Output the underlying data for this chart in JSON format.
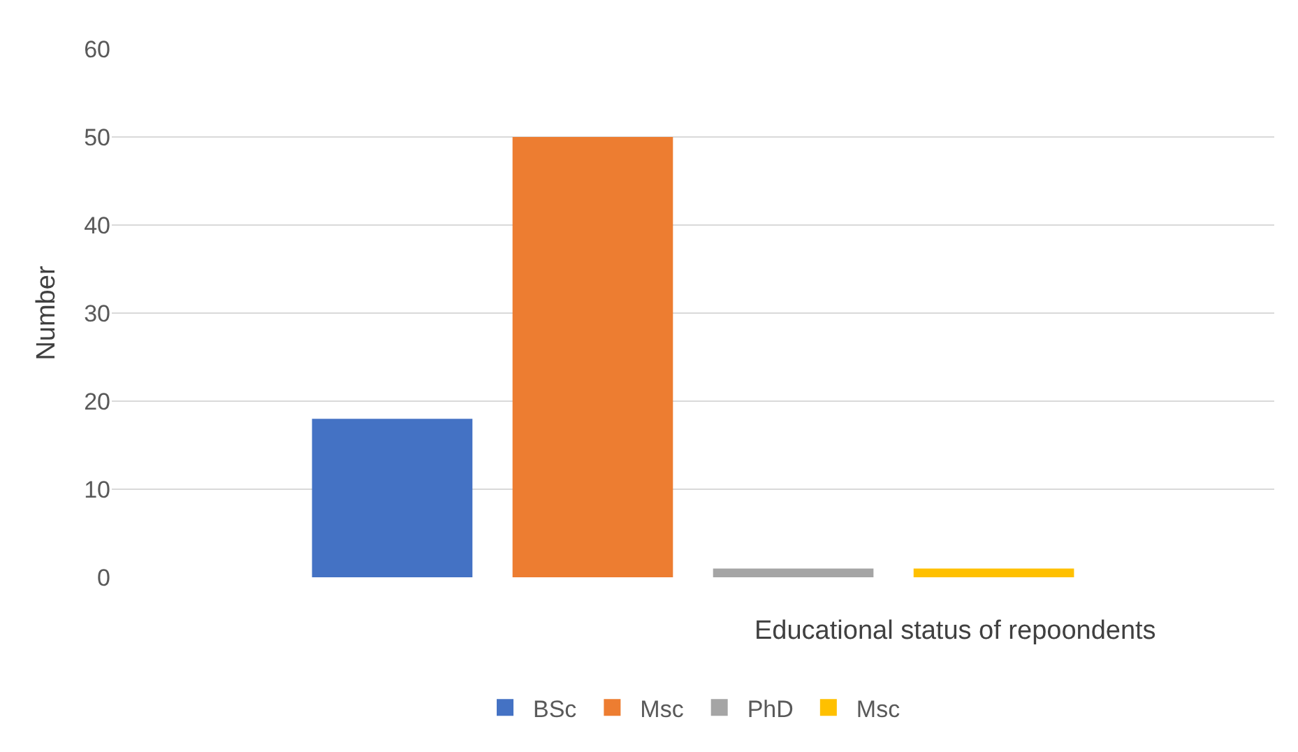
{
  "chart_data": {
    "type": "bar",
    "xlabel": "Educational status of repoondents",
    "ylabel": "Number",
    "categories": [
      null
    ],
    "series": [
      {
        "name": "BSc",
        "color": "#4472c4",
        "values": [
          18
        ]
      },
      {
        "name": "Msc",
        "color": "#ed7d31",
        "values": [
          50
        ]
      },
      {
        "name": "PhD",
        "color": "#a5a5a5",
        "values": [
          1
        ]
      },
      {
        "name": "Msc",
        "color": "#ffc000",
        "values": [
          1
        ]
      }
    ],
    "ylim": [
      0,
      60
    ],
    "yticks": [
      0,
      10,
      20,
      30,
      40,
      50,
      60
    ],
    "grid": "y",
    "legend": "bottom"
  }
}
